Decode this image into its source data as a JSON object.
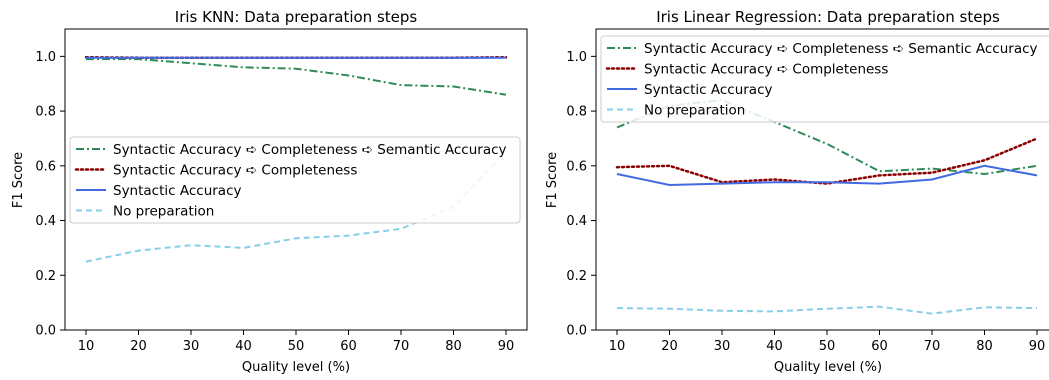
{
  "chart_data": [
    {
      "type": "line",
      "title": "Iris KNN: Data preparation steps",
      "xlabel": "Quality level (%)",
      "ylabel": "F1 Score",
      "x": [
        10,
        20,
        30,
        40,
        50,
        60,
        70,
        80,
        90
      ],
      "xticks": [
        "10",
        "20",
        "30",
        "40",
        "50",
        "60",
        "70",
        "80",
        "90"
      ],
      "ylim": [
        0,
        1.1
      ],
      "yticks": [
        "0.0",
        "0.2",
        "0.4",
        "0.6",
        "0.8",
        "1.0"
      ],
      "grid": false,
      "legend_position": "center-right",
      "series": [
        {
          "name": "Syntactic Accuracy ➪ Completeness ➪ Semantic Accuracy",
          "color": "#2e8b57",
          "style": "dashdot",
          "values": [
            0.99,
            0.99,
            0.975,
            0.96,
            0.955,
            0.93,
            0.895,
            0.89,
            0.86
          ]
        },
        {
          "name": "Syntactic Accuracy ➪ Completeness",
          "color": "#8b0000",
          "style": "dotted",
          "values": [
            0.997,
            0.995,
            0.995,
            0.995,
            0.995,
            0.995,
            0.995,
            0.995,
            0.997
          ]
        },
        {
          "name": "Syntactic Accuracy",
          "color": "#4169e1",
          "style": "solid",
          "values": [
            0.995,
            0.995,
            0.995,
            0.995,
            0.995,
            0.995,
            0.995,
            0.995,
            0.995
          ]
        },
        {
          "name": "No preparation",
          "color": "#87ceeb",
          "style": "dashed",
          "values": [
            0.25,
            0.29,
            0.31,
            0.3,
            0.335,
            0.345,
            0.37,
            0.45,
            0.65
          ]
        }
      ]
    },
    {
      "type": "line",
      "title": "Iris Linear Regression: Data preparation steps",
      "xlabel": "Quality level (%)",
      "ylabel": "F1 Score",
      "x": [
        10,
        20,
        30,
        40,
        50,
        60,
        70,
        80,
        90
      ],
      "xticks": [
        "10",
        "20",
        "30",
        "40",
        "50",
        "60",
        "70",
        "80",
        "90"
      ],
      "ylim": [
        0,
        1.1
      ],
      "yticks": [
        "0.0",
        "0.2",
        "0.4",
        "0.6",
        "0.8",
        "1.0"
      ],
      "grid": false,
      "legend_position": "upper-left",
      "series": [
        {
          "name": "Syntactic Accuracy ➪ Completeness ➪ Semantic Accuracy",
          "color": "#2e8b57",
          "style": "dashdot",
          "values": [
            0.74,
            0.82,
            0.84,
            0.76,
            0.68,
            0.58,
            0.59,
            0.57,
            0.6
          ]
        },
        {
          "name": "Syntactic Accuracy ➪ Completeness",
          "color": "#8b0000",
          "style": "dotted",
          "values": [
            0.595,
            0.6,
            0.54,
            0.55,
            0.535,
            0.565,
            0.575,
            0.62,
            0.7
          ]
        },
        {
          "name": "Syntactic Accuracy",
          "color": "#4169e1",
          "style": "solid",
          "values": [
            0.57,
            0.53,
            0.535,
            0.54,
            0.54,
            0.535,
            0.55,
            0.6,
            0.565
          ]
        },
        {
          "name": "No preparation",
          "color": "#87ceeb",
          "style": "dashed",
          "values": [
            0.08,
            0.078,
            0.07,
            0.068,
            0.078,
            0.085,
            0.06,
            0.083,
            0.08
          ]
        }
      ]
    }
  ]
}
